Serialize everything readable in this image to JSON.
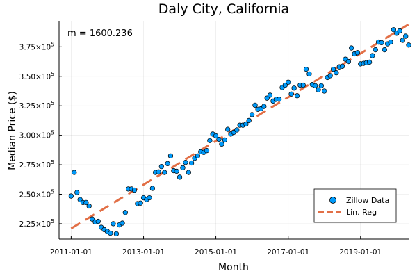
{
  "chart_data": {
    "type": "scatter",
    "title": "Daly City, California",
    "xlabel": "Month",
    "ylabel": "Median Price ($)",
    "annotation": "m = 1600.236",
    "x_ticks": [
      "2011-01-01",
      "2013-01-01",
      "2015-01-01",
      "2017-01-01",
      "2019-01-01"
    ],
    "y_ticks": [
      {
        "value": 225000,
        "mantissa": "2.25",
        "exp": "5"
      },
      {
        "value": 250000,
        "mantissa": "2.50",
        "exp": "5"
      },
      {
        "value": 275000,
        "mantissa": "2.75",
        "exp": "5"
      },
      {
        "value": 300000,
        "mantissa": "3.00",
        "exp": "5"
      },
      {
        "value": 325000,
        "mantissa": "3.25",
        "exp": "5"
      },
      {
        "value": 350000,
        "mantissa": "3.50",
        "exp": "5"
      },
      {
        "value": 375000,
        "mantissa": "3.75",
        "exp": "5"
      }
    ],
    "x_range": [
      "2010-09-01",
      "2020-05-01"
    ],
    "y_range": [
      212000,
      397000
    ],
    "grid": true,
    "legend_position": "bottom-right",
    "series": [
      {
        "name": "Zillow Data",
        "kind": "scatter",
        "color": "#009AFA",
        "points": [
          [
            "2011-01-01",
            248500
          ],
          [
            "2011-02-01",
            268500
          ],
          [
            "2011-03-01",
            251500
          ],
          [
            "2011-04-01",
            245500
          ],
          [
            "2011-05-01",
            243000
          ],
          [
            "2011-06-01",
            243000
          ],
          [
            "2011-07-01",
            240000
          ],
          [
            "2011-08-01",
            229000
          ],
          [
            "2011-09-01",
            226500
          ],
          [
            "2011-10-01",
            227000
          ],
          [
            "2011-11-01",
            222000
          ],
          [
            "2011-12-01",
            220000
          ],
          [
            "2012-01-01",
            218500
          ],
          [
            "2012-02-01",
            217000
          ],
          [
            "2012-03-01",
            225000
          ],
          [
            "2012-04-01",
            216500
          ],
          [
            "2012-05-01",
            224000
          ],
          [
            "2012-06-01",
            225500
          ],
          [
            "2012-07-01",
            234500
          ],
          [
            "2012-08-01",
            254500
          ],
          [
            "2012-09-01",
            254500
          ],
          [
            "2012-10-01",
            253500
          ],
          [
            "2012-11-01",
            242000
          ],
          [
            "2012-12-01",
            242500
          ],
          [
            "2013-01-01",
            247000
          ],
          [
            "2013-02-01",
            245500
          ],
          [
            "2013-03-01",
            247000
          ],
          [
            "2013-04-01",
            255000
          ],
          [
            "2013-05-01",
            268500
          ],
          [
            "2013-06-01",
            269000
          ],
          [
            "2013-07-01",
            273500
          ],
          [
            "2013-08-01",
            268500
          ],
          [
            "2013-09-01",
            276000
          ],
          [
            "2013-10-01",
            282500
          ],
          [
            "2013-11-01",
            270000
          ],
          [
            "2013-12-01",
            269500
          ],
          [
            "2014-01-01",
            264500
          ],
          [
            "2014-02-01",
            272500
          ],
          [
            "2014-03-01",
            277000
          ],
          [
            "2014-04-01",
            268500
          ],
          [
            "2014-05-01",
            276500
          ],
          [
            "2014-06-01",
            280500
          ],
          [
            "2014-07-01",
            282500
          ],
          [
            "2014-08-01",
            286000
          ],
          [
            "2014-09-01",
            285500
          ],
          [
            "2014-10-01",
            287000
          ],
          [
            "2014-11-01",
            295500
          ],
          [
            "2014-12-01",
            301000
          ],
          [
            "2015-01-01",
            299500
          ],
          [
            "2015-02-01",
            296500
          ],
          [
            "2015-03-01",
            292500
          ],
          [
            "2015-04-01",
            296000
          ],
          [
            "2015-05-01",
            305000
          ],
          [
            "2015-06-01",
            301000
          ],
          [
            "2015-07-01",
            302500
          ],
          [
            "2015-08-01",
            304500
          ],
          [
            "2015-09-01",
            308500
          ],
          [
            "2015-10-01",
            308500
          ],
          [
            "2015-11-01",
            309500
          ],
          [
            "2015-12-01",
            312500
          ],
          [
            "2016-01-01",
            317500
          ],
          [
            "2016-02-01",
            325500
          ],
          [
            "2016-03-01",
            322000
          ],
          [
            "2016-04-01",
            322500
          ],
          [
            "2016-05-01",
            324500
          ],
          [
            "2016-06-01",
            331500
          ],
          [
            "2016-07-01",
            334000
          ],
          [
            "2016-08-01",
            329000
          ],
          [
            "2016-09-01",
            330500
          ],
          [
            "2016-10-01",
            330500
          ],
          [
            "2016-11-01",
            340500
          ],
          [
            "2016-12-01",
            342500
          ],
          [
            "2017-01-01",
            345000
          ],
          [
            "2017-02-01",
            335000
          ],
          [
            "2017-03-01",
            340000
          ],
          [
            "2017-04-01",
            333500
          ],
          [
            "2017-05-01",
            342500
          ],
          [
            "2017-06-01",
            342500
          ],
          [
            "2017-07-01",
            356000
          ],
          [
            "2017-08-01",
            352000
          ],
          [
            "2017-09-01",
            343000
          ],
          [
            "2017-10-01",
            342000
          ],
          [
            "2017-11-01",
            338500
          ],
          [
            "2017-12-01",
            342000
          ],
          [
            "2018-01-01",
            337500
          ],
          [
            "2018-02-01",
            349000
          ],
          [
            "2018-03-01",
            350500
          ],
          [
            "2018-04-01",
            356000
          ],
          [
            "2018-05-01",
            353000
          ],
          [
            "2018-06-01",
            358000
          ],
          [
            "2018-07-01",
            358500
          ],
          [
            "2018-08-01",
            364500
          ],
          [
            "2018-09-01",
            362500
          ],
          [
            "2018-10-01",
            374000
          ],
          [
            "2018-11-01",
            369000
          ],
          [
            "2018-12-01",
            370000
          ],
          [
            "2019-01-01",
            360500
          ],
          [
            "2019-02-01",
            361000
          ],
          [
            "2019-03-01",
            361500
          ],
          [
            "2019-04-01",
            362000
          ],
          [
            "2019-05-01",
            367500
          ],
          [
            "2019-06-01",
            372500
          ],
          [
            "2019-07-01",
            379000
          ],
          [
            "2019-08-01",
            378500
          ],
          [
            "2019-09-01",
            372500
          ],
          [
            "2019-10-01",
            377500
          ],
          [
            "2019-11-01",
            379000
          ],
          [
            "2019-12-01",
            389500
          ],
          [
            "2020-01-01",
            386500
          ],
          [
            "2020-02-01",
            388500
          ],
          [
            "2020-03-01",
            380500
          ],
          [
            "2020-04-01",
            384000
          ],
          [
            "2020-05-01",
            376500
          ]
        ]
      },
      {
        "name": "Lin. Reg",
        "kind": "line",
        "style": "dashed",
        "color": "#E26F46",
        "points": [
          [
            "2011-01-01",
            221000
          ],
          [
            "2020-05-01",
            394000
          ]
        ]
      }
    ]
  }
}
